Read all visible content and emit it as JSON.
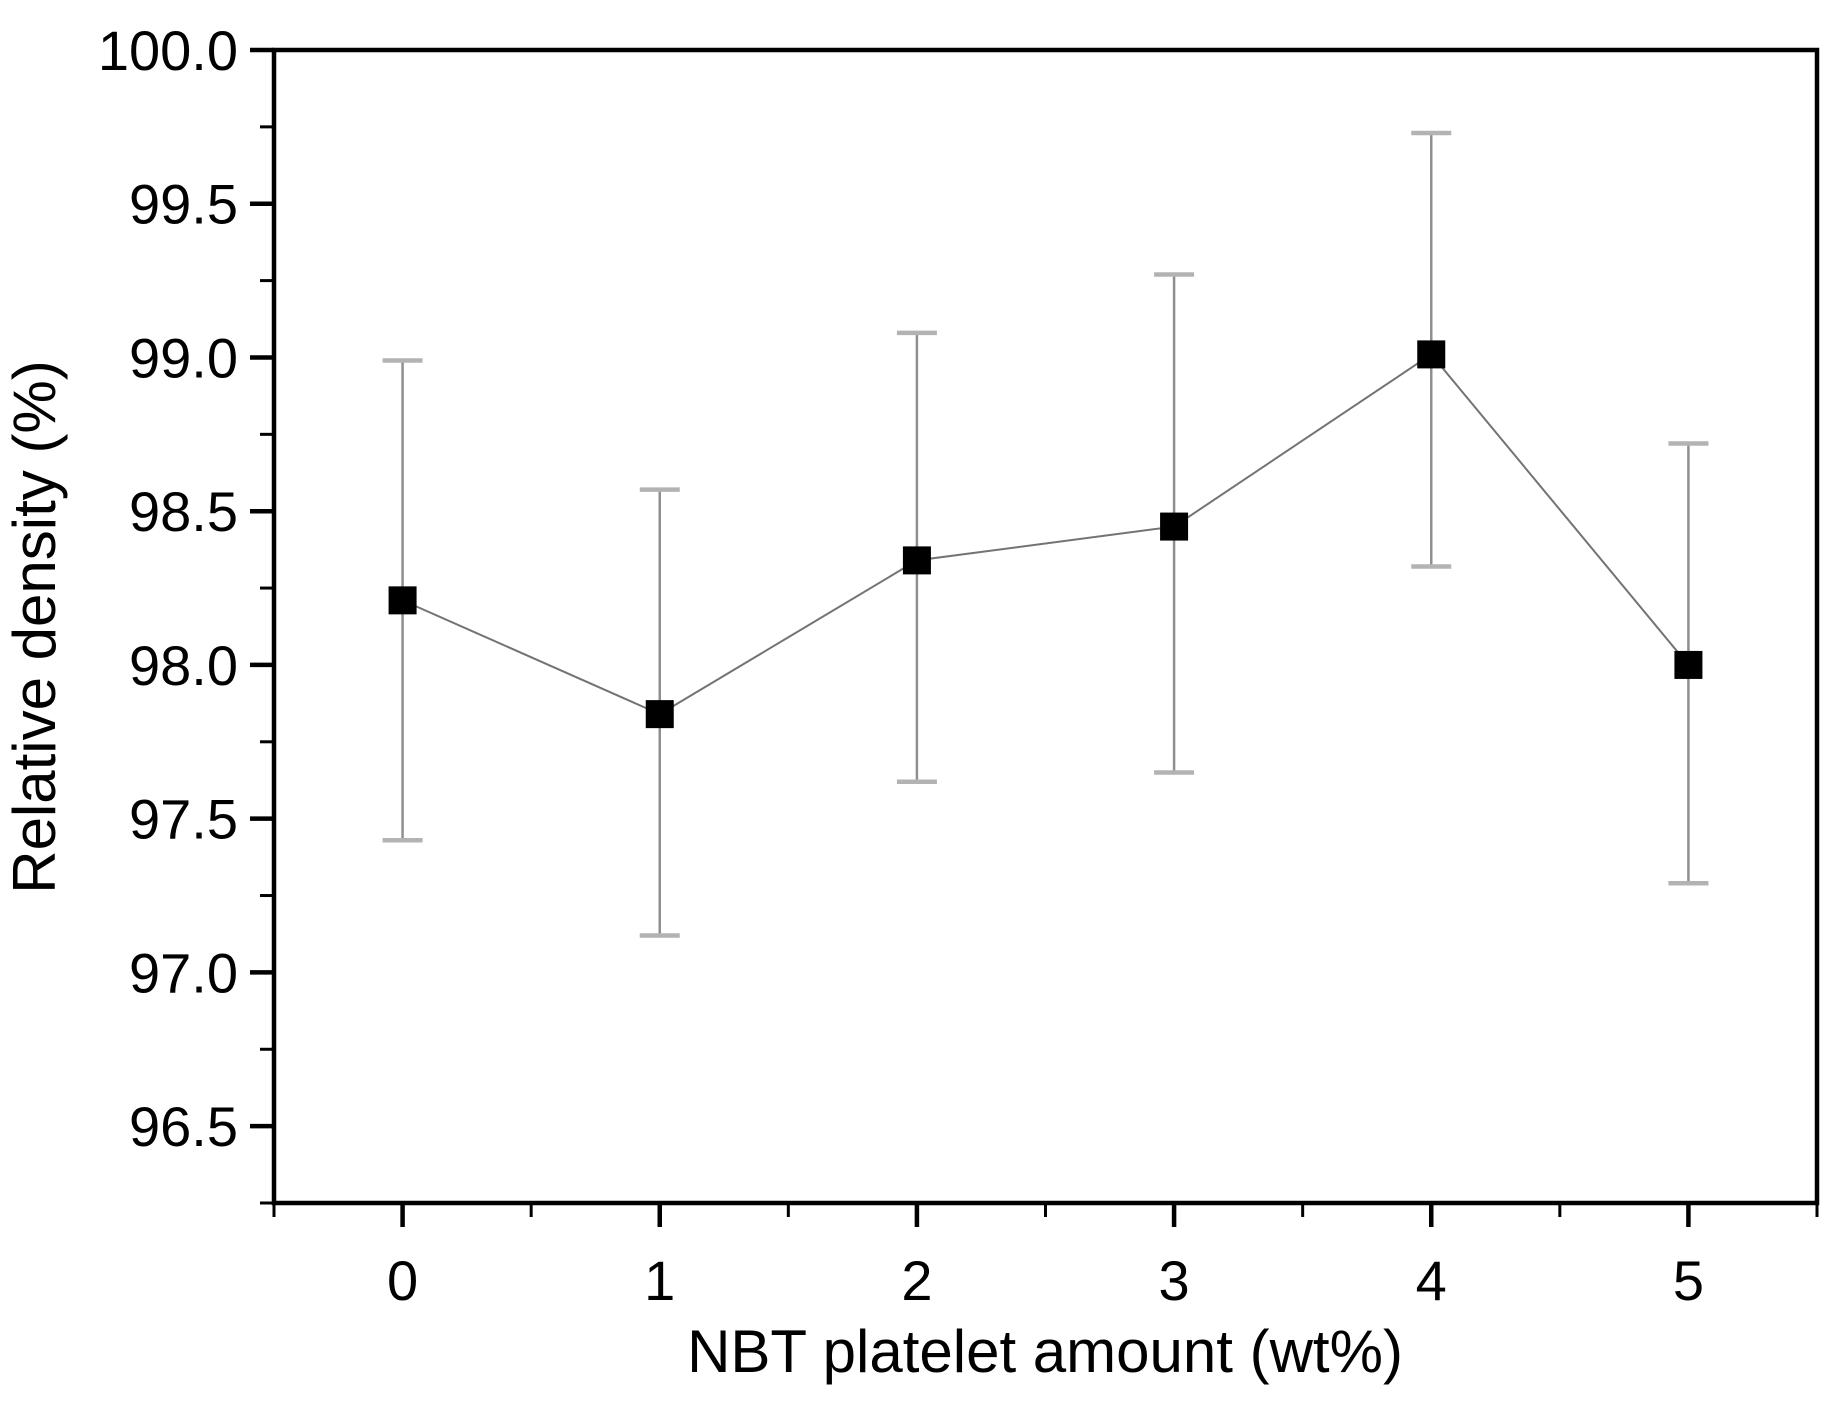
{
  "figure": {
    "background": "#ffffff"
  },
  "chart_data": {
    "type": "line",
    "title": "",
    "xlabel": "NBT platelet amount (wt%)",
    "ylabel": "Relative density (%)",
    "x": [
      0,
      1,
      2,
      3,
      4,
      5
    ],
    "series": [
      {
        "name": "Relative density",
        "values": [
          98.21,
          97.84,
          98.34,
          98.45,
          99.01,
          98.0
        ],
        "error_upper": [
          98.99,
          98.57,
          99.08,
          99.27,
          99.73,
          98.72
        ],
        "error_lower": [
          97.43,
          97.12,
          97.62,
          97.65,
          98.32,
          97.29
        ],
        "marker": "filled-square"
      }
    ],
    "xlim": [
      -0.5,
      5.5
    ],
    "ylim": [
      96.25,
      100.0
    ],
    "x_ticks": [
      {
        "value": 0,
        "label": "0"
      },
      {
        "value": 1,
        "label": "1"
      },
      {
        "value": 2,
        "label": "2"
      },
      {
        "value": 3,
        "label": "3"
      },
      {
        "value": 4,
        "label": "4"
      },
      {
        "value": 5,
        "label": "5"
      }
    ],
    "y_ticks": [
      {
        "value": 100.0,
        "label": "100.0"
      },
      {
        "value": 99.5,
        "label": "99.5"
      },
      {
        "value": 99.0,
        "label": "99.0"
      },
      {
        "value": 98.5,
        "label": "98.5"
      },
      {
        "value": 98.0,
        "label": "98.0"
      },
      {
        "value": 97.5,
        "label": "97.5"
      },
      {
        "value": 97.0,
        "label": "97.0"
      },
      {
        "value": 96.5,
        "label": "96.5"
      }
    ],
    "x_minor_ticks": [
      -0.5,
      0.5,
      1.5,
      2.5,
      3.5,
      4.5,
      5.5
    ],
    "y_minor_ticks": [
      96.25,
      96.75,
      97.25,
      97.75,
      98.25,
      98.75,
      99.25,
      99.75
    ],
    "grid": false,
    "legend": "none",
    "colors": {
      "axis": "#000000",
      "text": "#000000",
      "marker": "#000000",
      "line": "#737373",
      "error_bar": "#8f8f8f",
      "error_cap": "#b3b3b3"
    }
  }
}
